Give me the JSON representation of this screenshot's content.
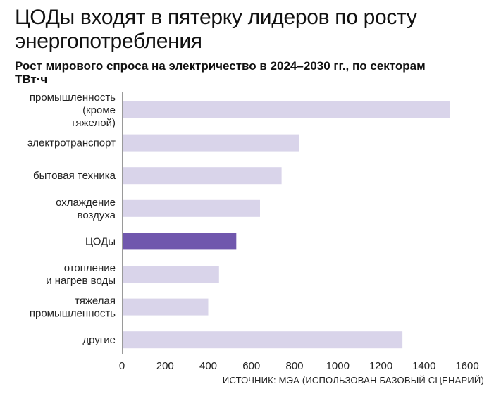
{
  "title": "ЦОДы входят в пятерку лидеров по росту энергопотребления",
  "subtitle": "Рост мирового спроса на электричество в 2024–2030 гг., по секторам",
  "unit": "ТВт·ч",
  "source": "ИСТОЧНИК: МЭА (ИСПОЛЬЗОВАН БАЗОВЫЙ СЦЕНАРИЙ)",
  "colors": {
    "bar": "#d9d4ea",
    "highlight": "#7057ad",
    "axis": "#9a9a9a"
  },
  "chart_data": {
    "type": "bar",
    "orientation": "horizontal",
    "categories": [
      [
        "промышленность",
        "(кроме",
        "тяжелой)"
      ],
      [
        "электротранспорт"
      ],
      [
        "бытовая техника"
      ],
      [
        "охлаждение",
        "воздуха"
      ],
      [
        "ЦОДы"
      ],
      [
        "отопление",
        "и нагрев воды"
      ],
      [
        "тяжелая",
        "промышленность"
      ],
      [
        "другие"
      ]
    ],
    "values": [
      1520,
      820,
      740,
      640,
      530,
      450,
      400,
      1300
    ],
    "highlight_index": 4,
    "xlim": [
      0,
      1600
    ],
    "xticks": [
      "0",
      "200",
      "400",
      "600",
      "800",
      "1000",
      "1200",
      "1400",
      "1600"
    ],
    "grid": false
  }
}
